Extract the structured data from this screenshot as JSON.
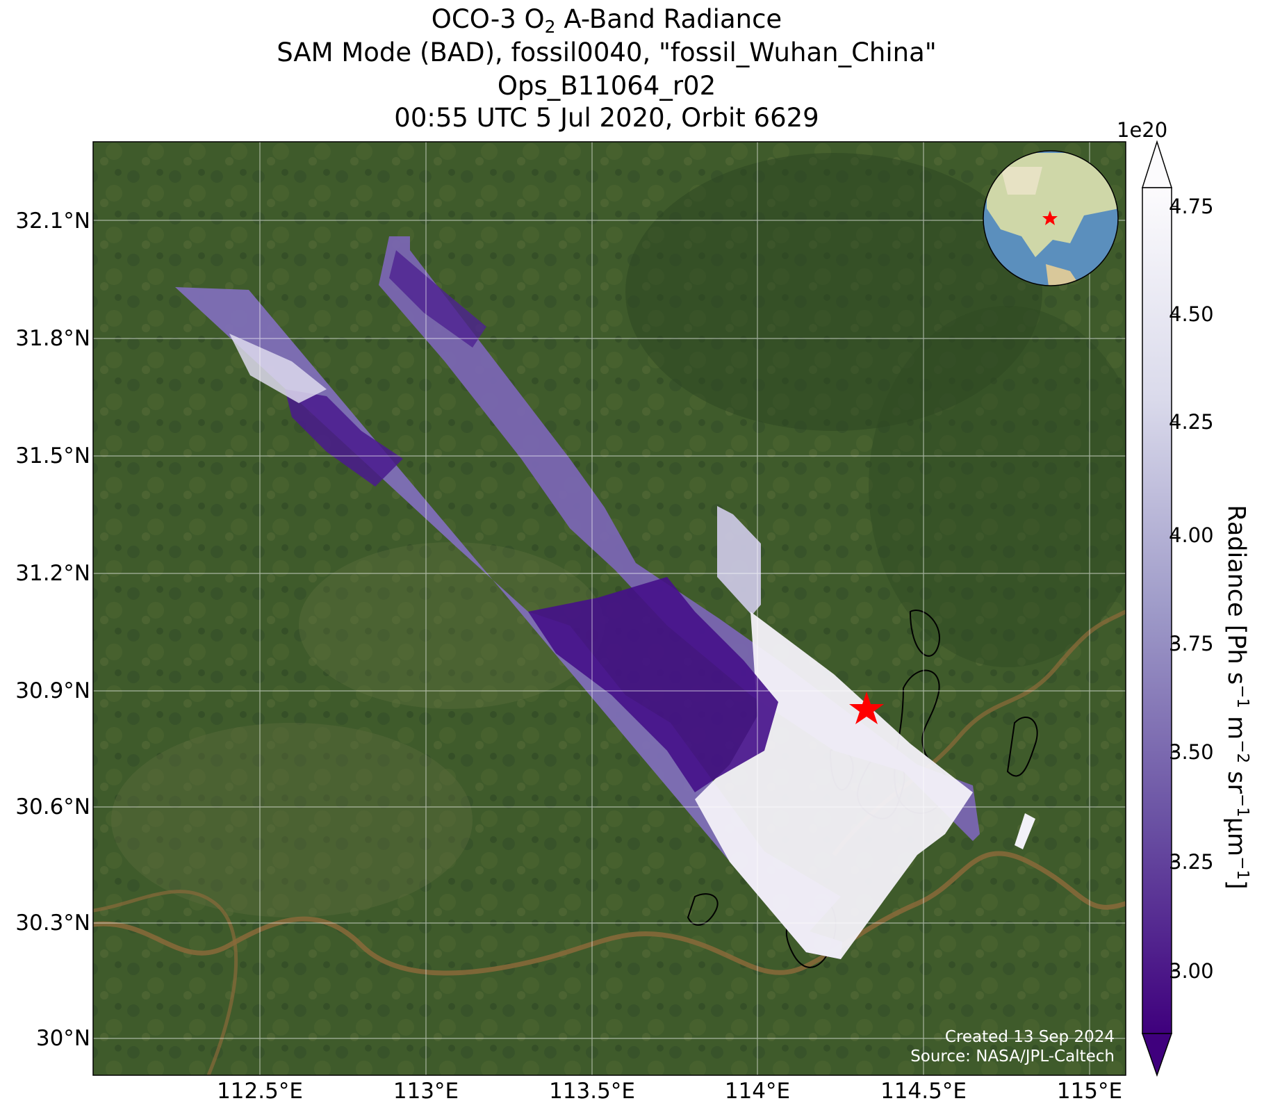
{
  "title": {
    "line1_prefix": "OCO-3 O",
    "line1_sub": "2",
    "line1_suffix": " A-Band Radiance",
    "line2": "SAM Mode (BAD), fossil0040, \"fossil_Wuhan_China\"",
    "line3": "Ops_B11064_r02",
    "line4": "00:55 UTC 5 Jul 2020, Orbit 6629"
  },
  "map": {
    "lat_ticks": [
      "32.1°N",
      "31.8°N",
      "31.5°N",
      "31.2°N",
      "30.9°N",
      "30.6°N",
      "30.3°N",
      "30°N"
    ],
    "lon_ticks": [
      "112.5°E",
      "113°E",
      "113.5°E",
      "114°E",
      "114.5°E",
      "115°E"
    ],
    "target_marker": "red-star",
    "colors": {
      "land": "#3d5a2a",
      "river": "#8a6a3a",
      "target": "#ff0000"
    }
  },
  "colorbar": {
    "multiplier": "1e20",
    "ticks": [
      "4.75",
      "4.50",
      "4.25",
      "4.00",
      "3.75",
      "3.50",
      "3.25",
      "3.00"
    ],
    "label_main": "Radiance [Ph s",
    "label_sup1": "−1",
    "label_m": " m",
    "label_sup2": "−2",
    "label_sr": " sr",
    "label_sup3": "−1",
    "label_um": "μm",
    "label_sup4": "−1",
    "label_end": "]",
    "colormap": "Purples_r",
    "range": [
      2.8,
      4.8
    ]
  },
  "credits": {
    "created": "Created 13 Sep 2024",
    "source": "Source: NASA/JPL-Caltech"
  },
  "inset_globe": {
    "marker": "red-star",
    "colors": {
      "ocean": "#5b8fbd",
      "land": "#cfd7a8"
    }
  }
}
